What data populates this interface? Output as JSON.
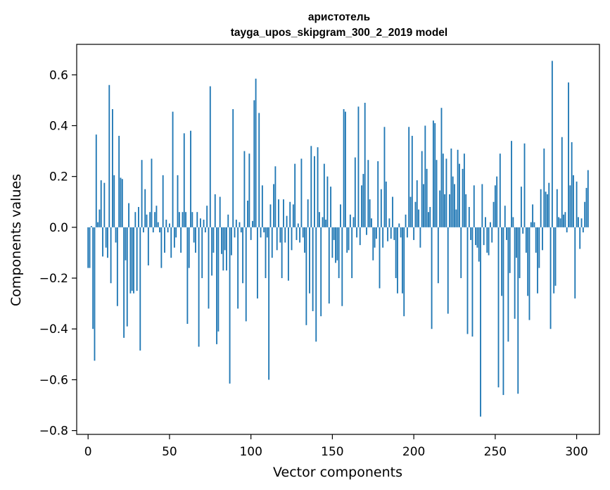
{
  "chart_data": {
    "type": "bar",
    "title": "аристотель",
    "subtitle": "tayga_upos_skipgram_300_2_2019 model",
    "xlabel": "Vector components",
    "ylabel": "Components values",
    "xlim": [
      -7,
      314
    ],
    "ylim": [
      -0.815,
      0.72
    ],
    "xticks": [
      0,
      50,
      100,
      150,
      200,
      250,
      300
    ],
    "xtick_labels": [
      "0",
      "50",
      "100",
      "150",
      "200",
      "250",
      "300"
    ],
    "yticks": [
      -0.8,
      -0.6,
      -0.4,
      -0.2,
      0.0,
      0.2,
      0.4,
      0.6
    ],
    "ytick_labels": [
      "−0.8",
      "−0.6",
      "−0.4",
      "−0.2",
      "0.0",
      "0.2",
      "0.4",
      "0.6"
    ],
    "grid": false,
    "bar_color": "#1f77b4",
    "x_start": 0,
    "values": [
      -0.16,
      -0.16,
      0.005,
      -0.4,
      -0.525,
      0.365,
      0.02,
      0.07,
      0.185,
      -0.115,
      0.175,
      -0.08,
      -0.12,
      0.56,
      -0.22,
      0.465,
      0.205,
      -0.06,
      -0.31,
      0.36,
      0.195,
      0.19,
      -0.435,
      -0.13,
      -0.39,
      0.095,
      -0.26,
      -0.25,
      -0.26,
      0.06,
      -0.25,
      0.08,
      -0.485,
      0.265,
      -0.02,
      0.15,
      0.05,
      -0.15,
      0.06,
      0.27,
      -0.02,
      0.06,
      0.085,
      0.02,
      -0.02,
      -0.16,
      0.205,
      -0.1,
      0.03,
      -0.02,
      0.015,
      -0.12,
      0.455,
      -0.08,
      -0.04,
      0.205,
      0.06,
      -0.1,
      0.06,
      0.37,
      0.06,
      -0.38,
      -0.16,
      0.38,
      0.06,
      -0.06,
      -0.1,
      0.06,
      -0.47,
      0.035,
      -0.2,
      0.03,
      -0.02,
      0.085,
      -0.32,
      0.555,
      -0.19,
      -0.1,
      0.13,
      -0.46,
      -0.41,
      0.12,
      -0.105,
      -0.17,
      -0.09,
      -0.17,
      0.05,
      -0.615,
      -0.11,
      0.465,
      -0.04,
      0.03,
      -0.32,
      0.02,
      -0.02,
      -0.22,
      0.3,
      -0.37,
      0.105,
      0.29,
      -0.05,
      0.025,
      0.5,
      0.585,
      -0.28,
      0.45,
      -0.04,
      0.165,
      -0.02,
      -0.2,
      -0.04,
      -0.6,
      0.09,
      -0.12,
      0.17,
      0.24,
      -0.09,
      0.11,
      -0.06,
      -0.2,
      0.11,
      -0.06,
      0.045,
      -0.21,
      0.1,
      -0.09,
      0.09,
      0.25,
      -0.05,
      0.015,
      -0.06,
      0.27,
      -0.04,
      -0.1,
      -0.385,
      0.11,
      -0.26,
      0.32,
      -0.33,
      0.28,
      -0.45,
      0.315,
      0.06,
      -0.35,
      0.04,
      0.25,
      0.03,
      0.2,
      -0.3,
      0.16,
      -0.12,
      -0.05,
      -0.14,
      -0.13,
      -0.2,
      0.09,
      -0.31,
      0.465,
      0.455,
      -0.1,
      -0.09,
      0.05,
      -0.2,
      0.04,
      0.275,
      -0.04,
      0.475,
      -0.07,
      0.165,
      0.21,
      0.49,
      -0.03,
      0.265,
      0.11,
      0.035,
      -0.13,
      -0.08,
      -0.045,
      0.26,
      -0.24,
      0.15,
      -0.08,
      0.395,
      0.18,
      -0.055,
      0.035,
      -0.045,
      0.12,
      -0.05,
      -0.2,
      -0.26,
      0.015,
      -0.04,
      -0.26,
      -0.35,
      0.05,
      -0.04,
      0.395,
      0.12,
      0.36,
      -0.05,
      0.1,
      0.185,
      0.07,
      -0.08,
      0.3,
      0.17,
      0.4,
      0.23,
      0.06,
      0.08,
      -0.4,
      0.42,
      0.41,
      0.265,
      -0.22,
      0.145,
      0.47,
      0.29,
      0.13,
      0.27,
      -0.34,
      0.13,
      0.31,
      0.2,
      0.17,
      0.07,
      0.305,
      0.25,
      -0.2,
      0.23,
      0.29,
      0.13,
      -0.42,
      0.08,
      -0.05,
      -0.43,
      0.165,
      -0.07,
      -0.08,
      -0.135,
      -0.745,
      0.17,
      -0.07,
      0.04,
      -0.1,
      -0.11,
      0.02,
      -0.06,
      0.1,
      0.165,
      0.2,
      -0.63,
      0.29,
      -0.27,
      -0.66,
      0.085,
      -0.05,
      -0.45,
      -0.18,
      0.34,
      0.04,
      -0.36,
      -0.12,
      -0.655,
      -0.2,
      0.16,
      -0.025,
      0.33,
      -0.1,
      -0.27,
      -0.365,
      0.02,
      0.09,
      0.02,
      -0.1,
      -0.26,
      -0.16,
      0.15,
      -0.09,
      0.31,
      0.14,
      0.13,
      0.175,
      -0.4,
      0.655,
      -0.26,
      -0.23,
      0.15,
      0.04,
      0.035,
      0.355,
      0.05,
      0.06,
      -0.02,
      0.57,
      0.165,
      0.335,
      0.205,
      -0.28,
      0.18,
      0.04,
      -0.085,
      0.035,
      -0.02,
      0.1,
      0.155,
      0.225
    ]
  }
}
